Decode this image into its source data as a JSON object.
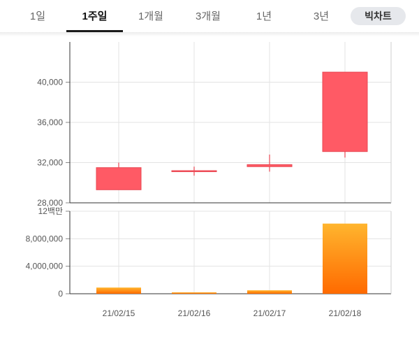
{
  "tabs": [
    {
      "label": "1일",
      "active": false
    },
    {
      "label": "1주일",
      "active": true
    },
    {
      "label": "1개월",
      "active": false
    },
    {
      "label": "3개월",
      "active": false
    },
    {
      "label": "1년",
      "active": false
    },
    {
      "label": "3년",
      "active": false
    }
  ],
  "big_chart_button": "빅차트",
  "chart_data": [
    {
      "type": "candlestick",
      "x": [
        "21/02/15",
        "21/02/16",
        "21/02/17",
        "21/02/18"
      ],
      "series": [
        {
          "values": [
            {
              "open": 29300,
              "close": 31500,
              "high": 32000,
              "low": 29300
            },
            {
              "open": 31150,
              "close": 31200,
              "high": 31600,
              "low": 30700
            },
            {
              "open": 31600,
              "close": 31800,
              "high": 32800,
              "low": 31100
            },
            {
              "open": 33100,
              "close": 41000,
              "high": 41000,
              "low": 32500
            }
          ]
        }
      ],
      "ylim": [
        28000,
        44000
      ],
      "yticks": [
        "28,000",
        "32,000",
        "36,000",
        "40,000"
      ],
      "colors": {
        "up": "#ff5a65",
        "down": "#3b78c9"
      },
      "grid": true
    },
    {
      "type": "bar",
      "x": [
        "21/02/15",
        "21/02/16",
        "21/02/17",
        "21/02/18"
      ],
      "values": [
        900000,
        200000,
        500000,
        10200000
      ],
      "ylim": [
        0,
        12000000
      ],
      "yticks": [
        "0",
        "4,000,000",
        "8,000,000",
        "12백만"
      ],
      "colors": {
        "bar_top": "#ffb52e",
        "bar_bottom": "#ff6a00"
      },
      "grid": true
    }
  ]
}
